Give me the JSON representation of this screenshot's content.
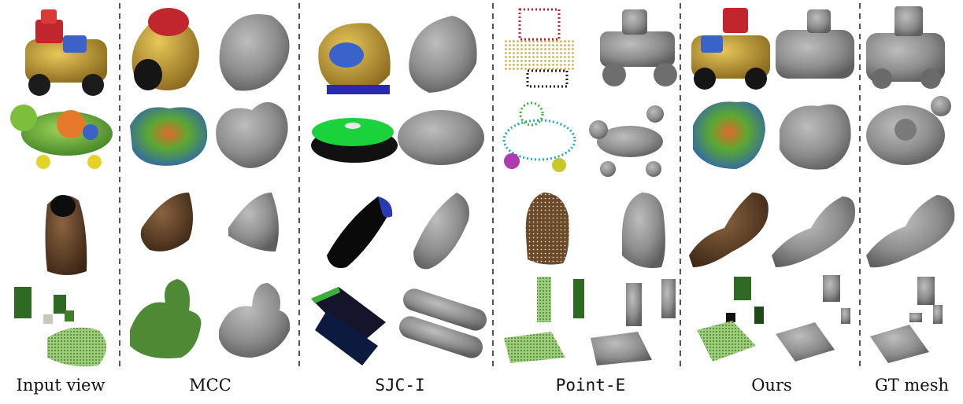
{
  "figure": {
    "columns": [
      {
        "id": "input",
        "label": "Input view"
      },
      {
        "id": "mcc",
        "label": "MCC"
      },
      {
        "id": "sjc",
        "label": "SJC-I"
      },
      {
        "id": "pointe",
        "label": "Point-E"
      },
      {
        "id": "ours",
        "label": "Ours"
      },
      {
        "id": "gt",
        "label": "GT mesh"
      }
    ],
    "rows": [
      "toy-truck",
      "toy-turtle",
      "shoe",
      "furniture-set"
    ],
    "colors": {
      "mesh_gray": "#8a8a8a",
      "mesh_highlight": "#b9b9b9",
      "divider": "#555555",
      "toy_yellow": "#c9a53a",
      "toy_red": "#c0262b",
      "turtle_green": "#5aa832",
      "shoe_brown": "#5a3d25",
      "furniture_green": "#3e7d2a",
      "sjc_black": "#0a0a0a"
    }
  }
}
